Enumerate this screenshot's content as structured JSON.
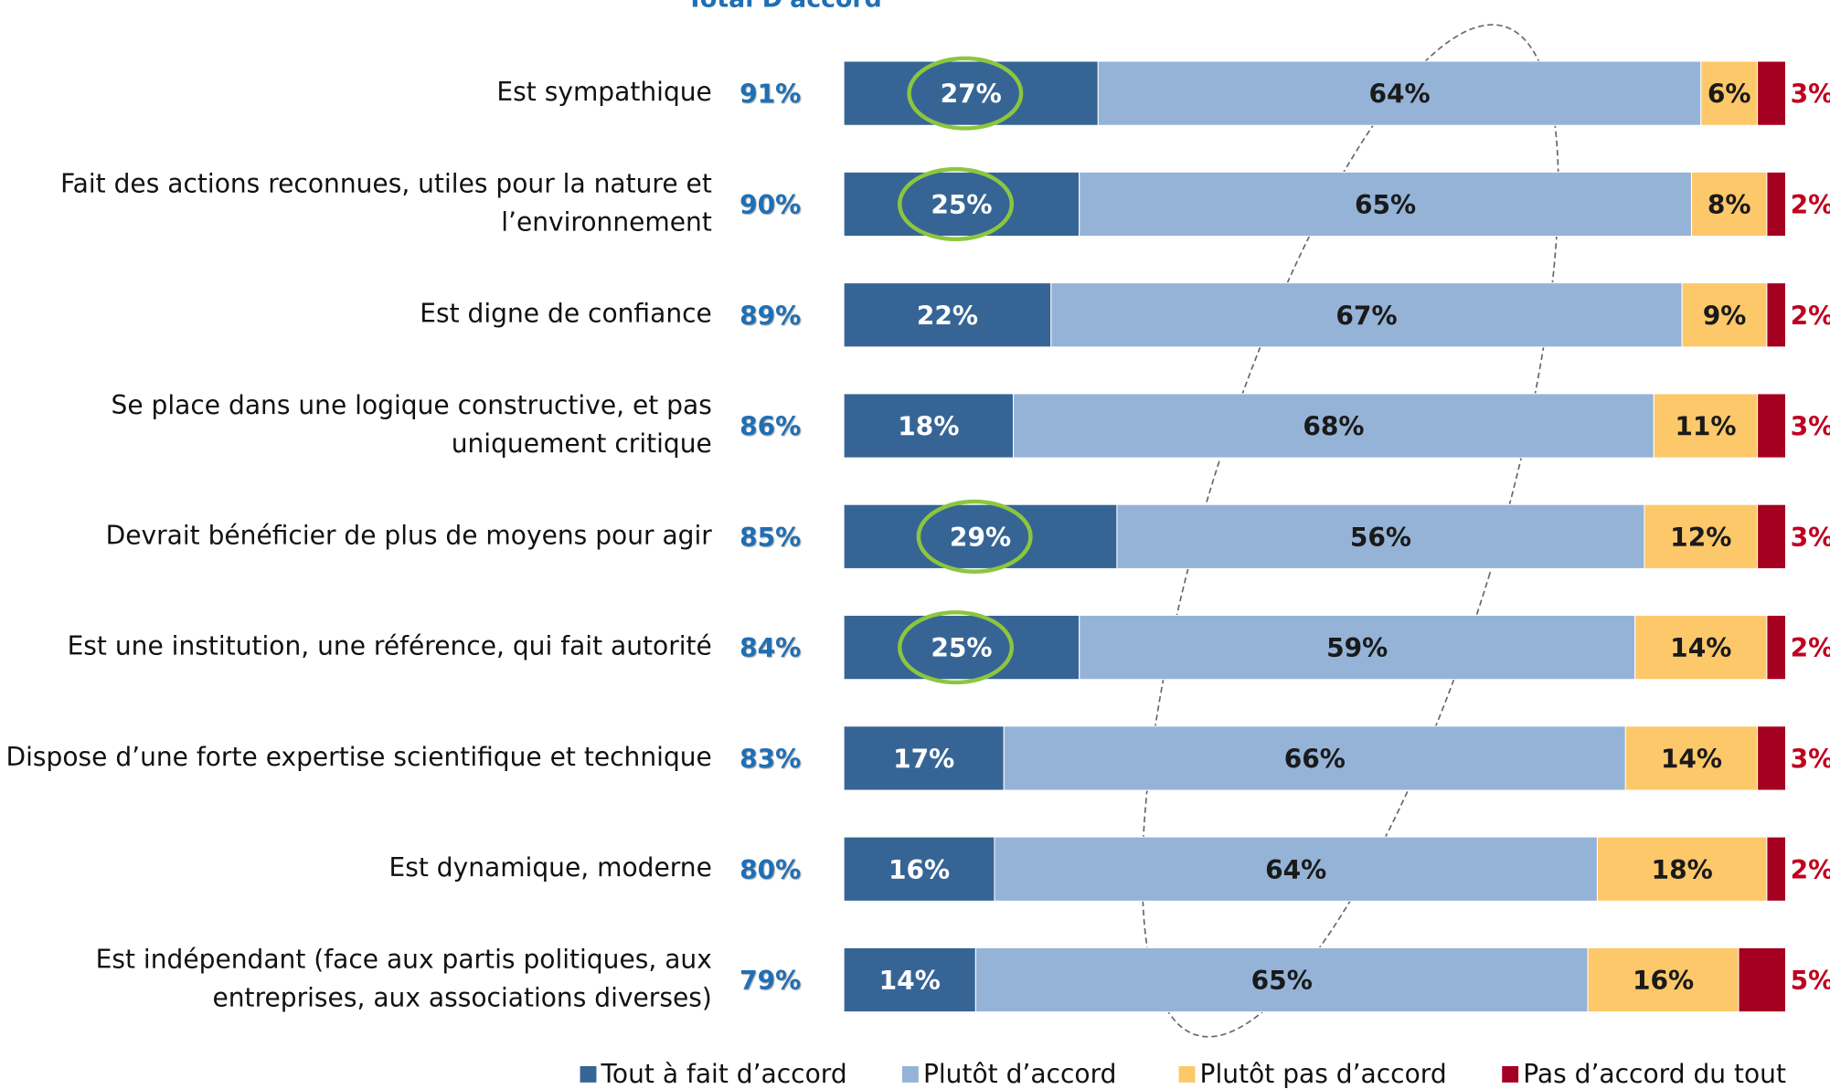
{
  "chart_data": {
    "type": "bar",
    "orientation": "horizontal",
    "stacked": true,
    "total_header": "Total D'accord",
    "categories": [
      [
        "Est sympathique"
      ],
      [
        "Fait des actions reconnues, utiles pour la nature et",
        "l’environnement"
      ],
      [
        "Est digne de confiance"
      ],
      [
        "Se place dans une logique constructive, et pas",
        "uniquement critique"
      ],
      [
        "Devrait bénéficier de plus de moyens pour agir"
      ],
      [
        "Est une institution, une référence, qui fait autorité"
      ],
      [
        "Dispose d’une forte expertise scientifique et technique"
      ],
      [
        "Est dynamique, moderne"
      ],
      [
        "Est indépendant (face aux partis politiques, aux",
        "entreprises, aux associations diverses)"
      ]
    ],
    "totals": {
      "color": "#1f6fb5",
      "values": [
        91,
        90,
        89,
        86,
        85,
        84,
        83,
        80,
        79
      ],
      "value_labels": [
        "91%",
        "90%",
        "89%",
        "86%",
        "85%",
        "84%",
        "83%",
        "80%",
        "79%"
      ]
    },
    "series": [
      {
        "name": "Tout à fait d’accord",
        "color": "#366595",
        "label_color": "#ffffff",
        "values": [
          27,
          25,
          22,
          18,
          29,
          25,
          17,
          16,
          14
        ],
        "value_labels": [
          "27%",
          "25%",
          "22%",
          "18%",
          "29%",
          "25%",
          "17%",
          "16%",
          "14%"
        ]
      },
      {
        "name": "Plutôt d’accord",
        "color": "#95b3d7",
        "label_color": "#1a1a1a",
        "values": [
          64,
          65,
          67,
          68,
          56,
          59,
          66,
          64,
          65
        ],
        "value_labels": [
          "64%",
          "65%",
          "67%",
          "68%",
          "56%",
          "59%",
          "66%",
          "64%",
          "65%"
        ]
      },
      {
        "name": "Plutôt pas d’accord",
        "color": "#fdc86a",
        "label_color": "#1a1a1a",
        "values": [
          6,
          8,
          9,
          11,
          12,
          14,
          14,
          18,
          16
        ],
        "value_labels": [
          "6%",
          "8%",
          "9%",
          "11%",
          "12%",
          "14%",
          "14%",
          "18%",
          "16%"
        ]
      },
      {
        "name": "Pas d’accord du tout",
        "color": "#a50021",
        "label_color": "#c0001e",
        "label_outside": true,
        "values": [
          3,
          2,
          2,
          3,
          3,
          2,
          3,
          2,
          5
        ],
        "value_labels": [
          "3%",
          "2%",
          "2%",
          "3%",
          "3%",
          "2%",
          "3%",
          "2%",
          "5%"
        ]
      }
    ],
    "highlighted": [
      0,
      1,
      4,
      5
    ],
    "xlim": [
      0,
      100
    ],
    "legend": "bottom"
  }
}
